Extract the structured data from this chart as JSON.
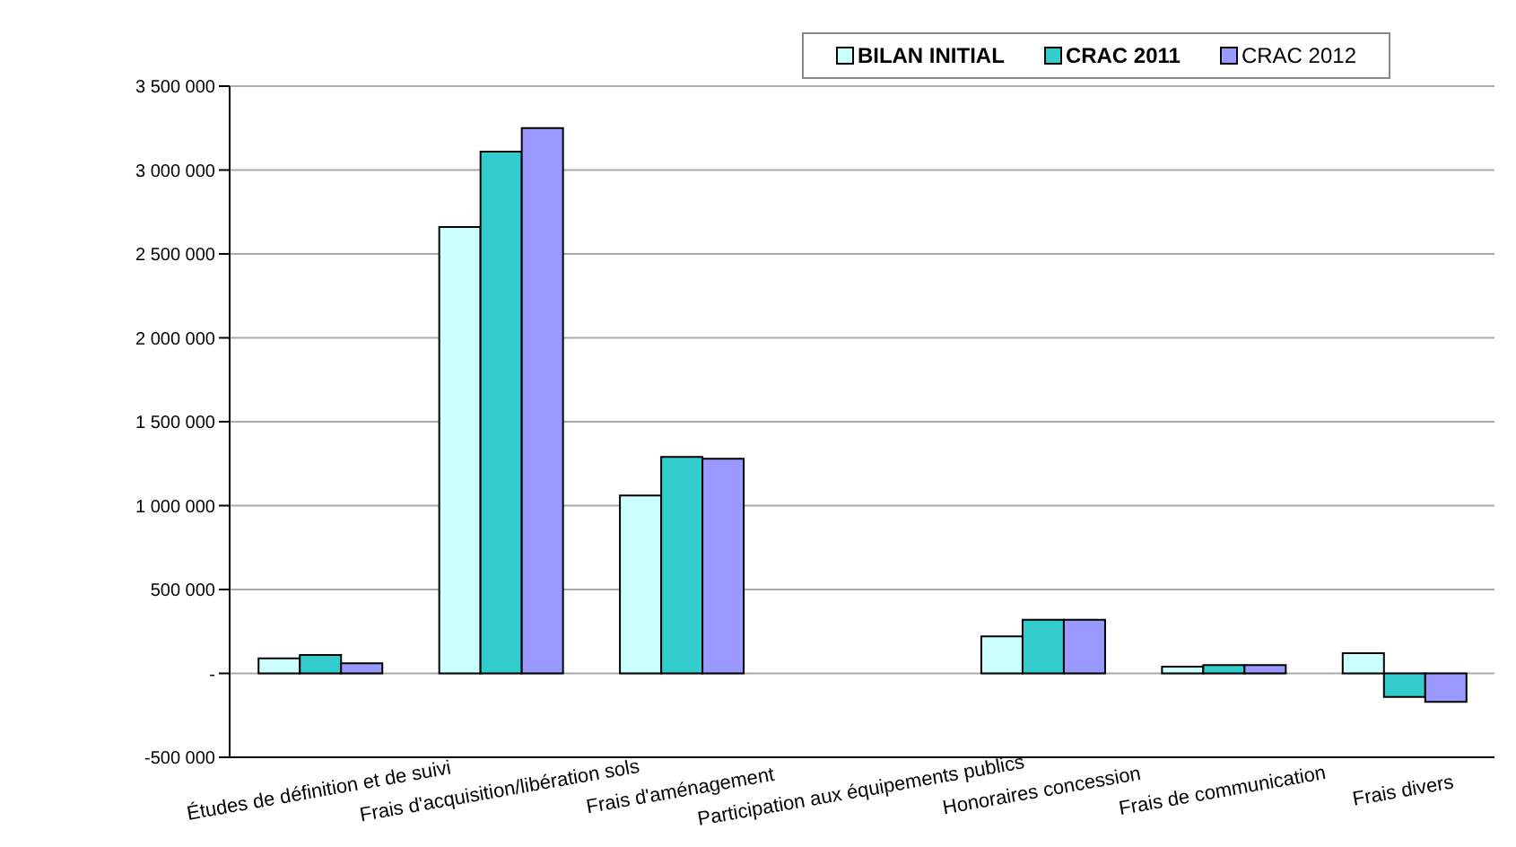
{
  "chart_data": {
    "type": "bar",
    "categories": [
      "Études de définition et de suivi",
      "Frais d'acquisition/libération sols",
      "Frais d'aménagement",
      "Participation aux équipements publics",
      "Honoraires concession",
      "Frais de communication",
      "Frais divers"
    ],
    "series": [
      {
        "name": "BILAN INITIAL",
        "color": "#ccffff",
        "values": [
          90000,
          2660000,
          1060000,
          0,
          220000,
          40000,
          120000
        ]
      },
      {
        "name": "CRAC 2011",
        "color": "#33cccc",
        "values": [
          110000,
          3110000,
          1290000,
          0,
          320000,
          50000,
          -140000
        ]
      },
      {
        "name": "CRAC 2012",
        "color": "#9999ff",
        "values": [
          60000,
          3250000,
          1280000,
          0,
          320000,
          50000,
          -170000
        ]
      }
    ],
    "ylim": [
      -500000,
      3500000
    ],
    "yticks": [
      {
        "value": -500000,
        "label": "-500 000"
      },
      {
        "value": 0,
        "label": "-"
      },
      {
        "value": 500000,
        "label": "500 000"
      },
      {
        "value": 1000000,
        "label": "1 000 000"
      },
      {
        "value": 1500000,
        "label": "1 500 000"
      },
      {
        "value": 2000000,
        "label": "2 000 000"
      },
      {
        "value": 2500000,
        "label": "2 500 000"
      },
      {
        "value": 3000000,
        "label": "3 000 000"
      },
      {
        "value": 3500000,
        "label": "3 500 000"
      }
    ],
    "grid": "y",
    "legend": "top right"
  }
}
